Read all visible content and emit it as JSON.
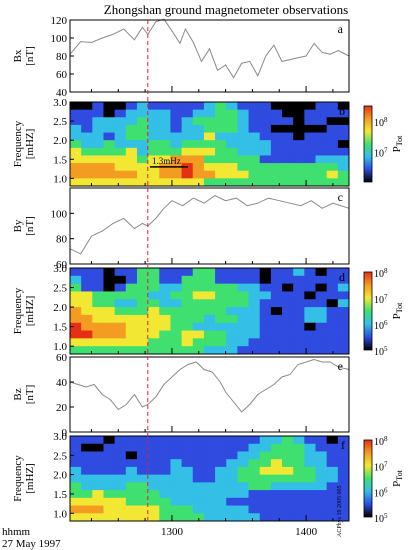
{
  "title": "Zhongshan ground magnetometer observations",
  "time_axis": {
    "label_line1": "hhmm",
    "label_line2": "27 May 1997",
    "tick_labels": [
      "1300",
      "1400"
    ],
    "xlim": [
      1224,
      1432
    ],
    "event_marker_time": 1282
  },
  "chart_data": [
    {
      "type": "line",
      "panel": "a",
      "ylabel": [
        "Bx",
        "[nT]"
      ],
      "ylim": [
        40,
        120
      ],
      "yticks": [
        40,
        60,
        80,
        100,
        120
      ],
      "x": [
        1224,
        1232,
        1240,
        1248,
        1256,
        1264,
        1272,
        1278,
        1282,
        1288,
        1294,
        1300,
        1306,
        1310,
        1316,
        1322,
        1328,
        1334,
        1340,
        1346,
        1352,
        1358,
        1364,
        1370,
        1376,
        1382,
        1388,
        1394,
        1400,
        1406,
        1412,
        1418,
        1424,
        1432
      ],
      "values": [
        82,
        96,
        95,
        100,
        104,
        110,
        98,
        112,
        104,
        118,
        121,
        108,
        94,
        110,
        95,
        74,
        88,
        64,
        70,
        56,
        72,
        74,
        58,
        80,
        92,
        74,
        76,
        78,
        80,
        94,
        84,
        82,
        86,
        80
      ],
      "color": "#8a8a8a"
    },
    {
      "type": "heatmap",
      "panel": "b",
      "ylabel": [
        "Frequency",
        "[mHZ]"
      ],
      "ylim": [
        0.8,
        3.0
      ],
      "yticks": [
        "1.0",
        "1.5",
        "2.0",
        "2.5",
        "3.0"
      ],
      "colorbar_label": "P",
      "colorbar_sub": "Tot",
      "colorbar_ticks": [
        "10^8",
        "10^7"
      ],
      "annotation": "1.3mHz",
      "annotation_time": 1300,
      "annotation_freq": 1.3,
      "rows": [
        "KKBKKBCBBBBBCGCBBBKKKKBBK",
        "BBBKBCCCCBBCCGGCBBBKKBBBB",
        "BBCCCCGCCBCGGGGCBBBBKBBKK",
        "CBCCCGGCCBCCGGGCBBKKKKKBB",
        "CCCBCGGCCCCCYCCCCBBBKBBBB",
        "GCCGCCCGGCGGGGCCCCBBBBBBK",
        "YGGGGYCGGGYYYGGCCCBBBBBBB",
        "YYYYYYGYYOOOGGGGGBBBBBCCC",
        "OOOOYYYYOOROYYYGGGGGGGGGC",
        "OOOOOOYYOOROOYYYGGGGGGGYG",
        "YYYYYYYYYYYYGGGGGGGGGGGGG"
      ]
    },
    {
      "type": "line",
      "panel": "c",
      "ylabel": [
        "By",
        "[nT]"
      ],
      "ylim": [
        60,
        120
      ],
      "yticks": [
        60,
        80,
        100
      ],
      "x": [
        1224,
        1232,
        1240,
        1248,
        1256,
        1264,
        1272,
        1278,
        1282,
        1288,
        1294,
        1300,
        1308,
        1316,
        1324,
        1332,
        1340,
        1348,
        1356,
        1364,
        1372,
        1380,
        1388,
        1396,
        1404,
        1412,
        1420,
        1432
      ],
      "values": [
        72,
        68,
        82,
        86,
        92,
        96,
        88,
        92,
        90,
        96,
        104,
        110,
        106,
        112,
        108,
        114,
        110,
        112,
        106,
        108,
        112,
        110,
        108,
        106,
        110,
        104,
        108,
        104
      ],
      "color": "#8a8a8a"
    },
    {
      "type": "heatmap",
      "panel": "d",
      "ylabel": [
        "Frequency",
        "[mHZ]"
      ],
      "ylim": [
        0.8,
        3.0
      ],
      "yticks": [
        "1.0",
        "1.5",
        "2.0",
        "2.5",
        "3.0"
      ],
      "colorbar_label": "P",
      "colorbar_sub": "Tot",
      "colorbar_ticks": [
        "10^8",
        "10^7",
        "10^6",
        "10^5"
      ],
      "rows": [
        "BBBKBBGGBBBGGBBBBKBBCBKBB",
        "CBBKKBGGBBGGGBBBBKBBBBBBB",
        "GBBKBGGGCCGGGGGCCBBKBBKBC",
        "YYGGGGGCCGGYYGGGCCBBBKBBB",
        "YYGGCCGGCCGGGGGGCBBBBBBKC",
        "OYYYGGGYGGGGGGCCCBKBBCCBB",
        "OOYYYYYYYGGGCGGCCBBBBCCBB",
        "ROOOOYYYYGGCCCCCCBBBBKBBB",
        "RROOOYYYGGYYGGCCCBBBBBBBB",
        "YYYYYYYGGGYGGGCCBBBBBBBBB",
        "GGGGGGGGGGGGCCCBBBBBBBBBB"
      ]
    },
    {
      "type": "line",
      "panel": "e",
      "ylabel": [
        "Bz",
        "[nT]"
      ],
      "ylim": [
        0,
        60
      ],
      "yticks": [
        0,
        20,
        40,
        60
      ],
      "x": [
        1224,
        1230,
        1236,
        1242,
        1248,
        1254,
        1260,
        1266,
        1272,
        1278,
        1282,
        1288,
        1294,
        1300,
        1306,
        1312,
        1318,
        1324,
        1330,
        1336,
        1340,
        1346,
        1352,
        1358,
        1364,
        1370,
        1376,
        1382,
        1388,
        1394,
        1400,
        1406,
        1412,
        1418,
        1424,
        1432
      ],
      "values": [
        40,
        38,
        36,
        38,
        30,
        26,
        18,
        22,
        30,
        20,
        22,
        28,
        38,
        44,
        50,
        54,
        56,
        50,
        48,
        40,
        32,
        24,
        16,
        22,
        30,
        34,
        38,
        44,
        46,
        54,
        56,
        58,
        56,
        56,
        52,
        50
      ],
      "color": "#8a8a8a"
    },
    {
      "type": "heatmap",
      "panel": "f",
      "ylabel": [
        "Frequency",
        "[mHZ]"
      ],
      "ylim": [
        0.8,
        3.0
      ],
      "yticks": [
        "1.0",
        "1.5",
        "2.0",
        "2.5",
        "3.0"
      ],
      "colorbar_label": "P",
      "colorbar_sub": "Tot",
      "colorbar_ticks": [
        "10^8",
        "10^7",
        "10^6",
        "10^5"
      ],
      "rows": [
        "BBBKBBBBBBBBBBBBBCCGCBBKB",
        "BKKBBBBBBBBBBBBBCCGGGCBBB",
        "BBBBBKBBBBBBBBBCCGGGGCCBB",
        "BBBBBBBBBCBBBBCCGGYGGCCBB",
        "CBBBBCBBBCCBBCCGGYYYGGCCB",
        "CCCCCCCCCCCBBCCGGGGGGGCCB",
        "GCCCCGGCCCCCCCCCGGCCCCCBB",
        "GGYGGGGGCCCCCCCCBBBBBBBBB",
        "YYYYYGGGGCCCCCBBBBBBBBBBB",
        "OOOYYYYYGGGCCCCCBBBBBBBBB",
        "YYYYYYYYGGGGCCCCCBBBBBBBB"
      ]
    }
  ],
  "color_key": {
    "K": "#000000",
    "B": "#2f4be0",
    "C": "#33bfe6",
    "G": "#3fe070",
    "Y": "#f2e833",
    "O": "#f49b22",
    "R": "#e63014"
  },
  "line_style": {
    "series_color": "#8a8a8a",
    "marker_color": "#e0203a"
  },
  "panels_letters": [
    "a",
    "b",
    "c",
    "d",
    "e",
    "f"
  ],
  "watermark": "ACPhys 19 2005 005"
}
